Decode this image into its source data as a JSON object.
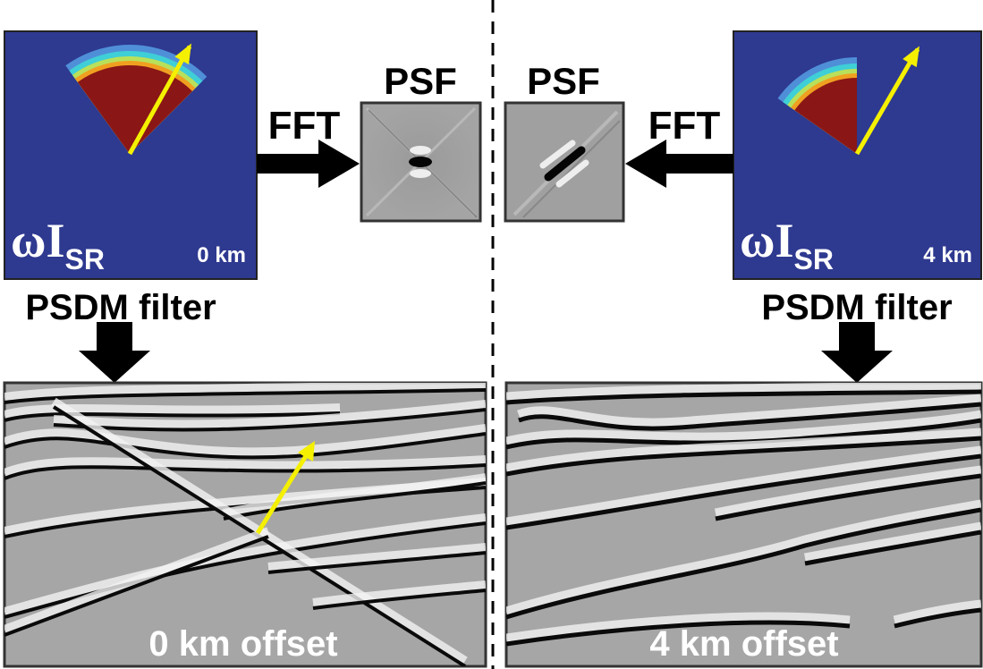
{
  "left": {
    "filter_symbol": "ωI",
    "filter_subscript": "SR",
    "filter_offset": "0 km",
    "transform": "FFT",
    "psf_title": "PSF",
    "filter_name": "PSDM filter",
    "image_label": "0 km offset"
  },
  "right": {
    "filter_symbol": "ωI",
    "filter_subscript": "SR",
    "filter_offset": "4 km",
    "transform": "FFT",
    "psf_title": "PSF",
    "filter_name": "PSDM filter",
    "image_label": "4 km offset"
  }
}
